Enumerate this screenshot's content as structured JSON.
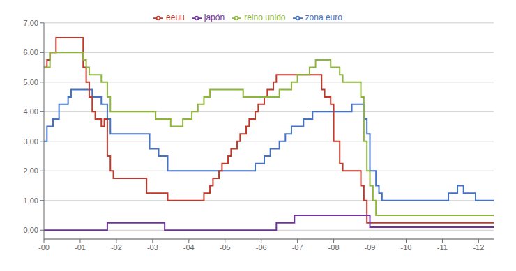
{
  "chart_data": {
    "type": "step",
    "categories": [
      "-00",
      null,
      null,
      null,
      null,
      null,
      null,
      null,
      null,
      null,
      null,
      null,
      "-01",
      null,
      null,
      null,
      null,
      null,
      null,
      null,
      null,
      null,
      null,
      null,
      "-02",
      null,
      null,
      null,
      null,
      null,
      null,
      null,
      null,
      null,
      null,
      null,
      "-03",
      null,
      null,
      null,
      null,
      null,
      null,
      null,
      null,
      null,
      null,
      null,
      "-04",
      null,
      null,
      null,
      null,
      null,
      null,
      null,
      null,
      null,
      null,
      null,
      "-05",
      null,
      null,
      null,
      null,
      null,
      null,
      null,
      null,
      null,
      null,
      null,
      "-06",
      null,
      null,
      null,
      null,
      null,
      null,
      null,
      null,
      null,
      null,
      null,
      "-07",
      null,
      null,
      null,
      null,
      null,
      null,
      null,
      null,
      null,
      null,
      null,
      "-08",
      null,
      null,
      null,
      null,
      null,
      null,
      null,
      null,
      null,
      null,
      null,
      "-09",
      null,
      null,
      null,
      null,
      null,
      null,
      null,
      null,
      null,
      null,
      null,
      "-10",
      null,
      null,
      null,
      null,
      null,
      null,
      null,
      null,
      null,
      null,
      null,
      "-11",
      null,
      null,
      null,
      null,
      null,
      null,
      null,
      null,
      null,
      null,
      null,
      "-12",
      null,
      null,
      null,
      null,
      null
    ],
    "series": [
      {
        "name": "zona euro",
        "color": "#4472c4",
        "values": [
          3.0,
          3.5,
          3.5,
          3.75,
          3.75,
          4.25,
          4.25,
          4.25,
          4.5,
          4.75,
          4.75,
          4.75,
          4.75,
          4.75,
          4.75,
          4.75,
          4.5,
          4.5,
          4.5,
          4.25,
          4.25,
          3.75,
          3.25,
          3.25,
          3.25,
          3.25,
          3.25,
          3.25,
          3.25,
          3.25,
          3.25,
          3.25,
          3.25,
          3.25,
          3.25,
          2.75,
          2.75,
          2.75,
          2.5,
          2.5,
          2.5,
          2.0,
          2.0,
          2.0,
          2.0,
          2.0,
          2.0,
          2.0,
          2.0,
          2.0,
          2.0,
          2.0,
          2.0,
          2.0,
          2.0,
          2.0,
          2.0,
          2.0,
          2.0,
          2.0,
          2.0,
          2.0,
          2.0,
          2.0,
          2.0,
          2.0,
          2.0,
          2.0,
          2.0,
          2.0,
          2.25,
          2.25,
          2.25,
          2.5,
          2.5,
          2.75,
          2.75,
          2.75,
          3.0,
          3.0,
          3.25,
          3.25,
          3.5,
          3.5,
          3.5,
          3.5,
          3.75,
          3.75,
          3.75,
          4.0,
          4.0,
          4.0,
          4.0,
          4.0,
          4.0,
          4.0,
          4.0,
          4.0,
          4.0,
          4.0,
          4.0,
          4.0,
          4.25,
          4.25,
          4.25,
          4.25,
          3.75,
          3.25,
          2.0,
          2.0,
          1.5,
          1.25,
          1.0,
          1.0,
          1.0,
          1.0,
          1.0,
          1.0,
          1.0,
          1.0,
          1.0,
          1.0,
          1.0,
          1.0,
          1.0,
          1.0,
          1.0,
          1.0,
          1.0,
          1.0,
          1.0,
          1.0,
          1.0,
          1.0,
          1.25,
          1.25,
          1.25,
          1.5,
          1.5,
          1.25,
          1.25,
          1.25,
          1.25,
          1.0,
          1.0,
          1.0,
          1.0,
          1.0,
          1.0,
          1.0
        ]
      },
      {
        "name": "eeuu",
        "color": "#c0392b",
        "values": [
          5.5,
          5.75,
          6.0,
          6.0,
          6.5,
          6.5,
          6.5,
          6.5,
          6.5,
          6.5,
          6.5,
          6.5,
          6.5,
          5.5,
          5.0,
          4.5,
          4.0,
          3.75,
          3.75,
          3.5,
          3.75,
          2.5,
          2.0,
          1.75,
          1.75,
          1.75,
          1.75,
          1.75,
          1.75,
          1.75,
          1.75,
          1.75,
          1.75,
          1.75,
          1.25,
          1.25,
          1.25,
          1.25,
          1.25,
          1.25,
          1.25,
          1.0,
          1.0,
          1.0,
          1.0,
          1.0,
          1.0,
          1.0,
          1.0,
          1.0,
          1.0,
          1.0,
          1.0,
          1.25,
          1.25,
          1.5,
          1.75,
          1.75,
          2.0,
          2.25,
          2.25,
          2.5,
          2.75,
          2.75,
          3.0,
          3.25,
          3.25,
          3.5,
          3.75,
          3.75,
          4.0,
          4.25,
          4.25,
          4.5,
          4.75,
          4.75,
          5.0,
          5.25,
          5.25,
          5.25,
          5.25,
          5.25,
          5.25,
          5.25,
          5.25,
          5.25,
          5.25,
          5.25,
          5.25,
          5.25,
          5.25,
          5.25,
          4.75,
          4.5,
          4.5,
          4.25,
          3.0,
          3.0,
          2.25,
          2.0,
          2.0,
          2.0,
          2.0,
          2.0,
          2.0,
          1.5,
          1.0,
          0.25,
          0.25,
          0.25,
          0.25,
          0.25,
          0.25,
          0.25,
          0.25,
          0.25,
          0.25,
          0.25,
          0.25,
          0.25,
          0.25,
          0.25,
          0.25,
          0.25,
          0.25,
          0.25,
          0.25,
          0.25,
          0.25,
          0.25,
          0.25,
          0.25,
          0.25,
          0.25,
          0.25,
          0.25,
          0.25,
          0.25,
          0.25,
          0.25,
          0.25,
          0.25,
          0.25,
          0.25,
          0.25,
          0.25,
          0.25,
          0.25,
          0.25,
          0.25
        ]
      },
      {
        "name": "reino unido",
        "color": "#8db53b",
        "values": [
          5.5,
          5.5,
          6.0,
          6.0,
          6.0,
          6.0,
          6.0,
          6.0,
          6.0,
          6.0,
          6.0,
          6.0,
          6.0,
          5.75,
          5.5,
          5.25,
          5.25,
          5.25,
          5.25,
          5.0,
          5.0,
          4.5,
          4.0,
          4.0,
          4.0,
          4.0,
          4.0,
          4.0,
          4.0,
          4.0,
          4.0,
          4.0,
          4.0,
          4.0,
          4.0,
          4.0,
          4.0,
          3.75,
          3.75,
          3.75,
          3.75,
          3.75,
          3.5,
          3.5,
          3.5,
          3.5,
          3.75,
          3.75,
          3.75,
          4.0,
          4.0,
          4.25,
          4.25,
          4.5,
          4.5,
          4.75,
          4.75,
          4.75,
          4.75,
          4.75,
          4.75,
          4.75,
          4.75,
          4.75,
          4.75,
          4.75,
          4.5,
          4.5,
          4.5,
          4.5,
          4.5,
          4.5,
          4.5,
          4.5,
          4.5,
          4.5,
          4.5,
          4.5,
          4.75,
          4.75,
          4.75,
          4.75,
          5.0,
          5.0,
          5.25,
          5.25,
          5.25,
          5.25,
          5.5,
          5.5,
          5.75,
          5.75,
          5.75,
          5.75,
          5.75,
          5.5,
          5.5,
          5.5,
          5.25,
          5.0,
          5.0,
          5.0,
          5.0,
          5.0,
          5.0,
          4.5,
          3.0,
          2.0,
          1.5,
          1.0,
          0.5,
          0.5,
          0.5,
          0.5,
          0.5,
          0.5,
          0.5,
          0.5,
          0.5,
          0.5,
          0.5,
          0.5,
          0.5,
          0.5,
          0.5,
          0.5,
          0.5,
          0.5,
          0.5,
          0.5,
          0.5,
          0.5,
          0.5,
          0.5,
          0.5,
          0.5,
          0.5,
          0.5,
          0.5,
          0.5,
          0.5,
          0.5,
          0.5,
          0.5,
          0.5,
          0.5,
          0.5,
          0.5,
          0.5,
          0.5
        ]
      },
      {
        "name": "japón",
        "color": "#7030a0",
        "values": [
          0.0,
          0.0,
          0.0,
          0.0,
          0.0,
          0.0,
          0.0,
          0.0,
          0.0,
          0.0,
          0.0,
          0.0,
          0.0,
          0.0,
          0.0,
          0.0,
          0.0,
          0.0,
          0.0,
          0.0,
          0.0,
          0.25,
          0.25,
          0.25,
          0.25,
          0.25,
          0.25,
          0.25,
          0.25,
          0.25,
          0.25,
          0.25,
          0.25,
          0.25,
          0.25,
          0.25,
          0.25,
          0.25,
          0.25,
          0.25,
          0.0,
          0.0,
          0.0,
          0.0,
          0.0,
          0.0,
          0.0,
          0.0,
          0.0,
          0.0,
          0.0,
          0.0,
          0.0,
          0.0,
          0.0,
          0.0,
          0.0,
          0.0,
          0.0,
          0.0,
          0.0,
          0.0,
          0.0,
          0.0,
          0.0,
          0.0,
          0.0,
          0.0,
          0.0,
          0.0,
          0.0,
          0.0,
          0.0,
          0.0,
          0.0,
          0.0,
          0.0,
          0.25,
          0.25,
          0.25,
          0.25,
          0.25,
          0.25,
          0.5,
          0.5,
          0.5,
          0.5,
          0.5,
          0.5,
          0.5,
          0.5,
          0.5,
          0.5,
          0.5,
          0.5,
          0.5,
          0.5,
          0.5,
          0.5,
          0.5,
          0.5,
          0.5,
          0.5,
          0.5,
          0.5,
          0.5,
          0.5,
          0.5,
          0.1,
          0.1,
          0.1,
          0.1,
          0.1,
          0.1,
          0.1,
          0.1,
          0.1,
          0.1,
          0.1,
          0.1,
          0.1,
          0.1,
          0.1,
          0.1,
          0.1,
          0.1,
          0.1,
          0.1,
          0.1,
          0.1,
          0.1,
          0.1,
          0.1,
          0.1,
          0.1,
          0.1,
          0.1,
          0.1,
          0.1,
          0.1,
          0.1,
          0.1,
          0.1,
          0.1,
          0.1,
          0.1,
          0.1,
          0.1,
          0.1,
          0.1
        ]
      }
    ],
    "ylim": [
      -0.3,
      7.0
    ],
    "yticks": [
      {
        "value": 0.0,
        "label": "0,00"
      },
      {
        "value": 1.0,
        "label": "1,00"
      },
      {
        "value": 2.0,
        "label": "2,00"
      },
      {
        "value": 3.0,
        "label": "3,00"
      },
      {
        "value": 4.0,
        "label": "4,00"
      },
      {
        "value": 5.0,
        "label": "5,00"
      },
      {
        "value": 6.0,
        "label": "6,00"
      },
      {
        "value": 7.0,
        "label": "7,00"
      }
    ],
    "grid": true,
    "legend": "top"
  }
}
